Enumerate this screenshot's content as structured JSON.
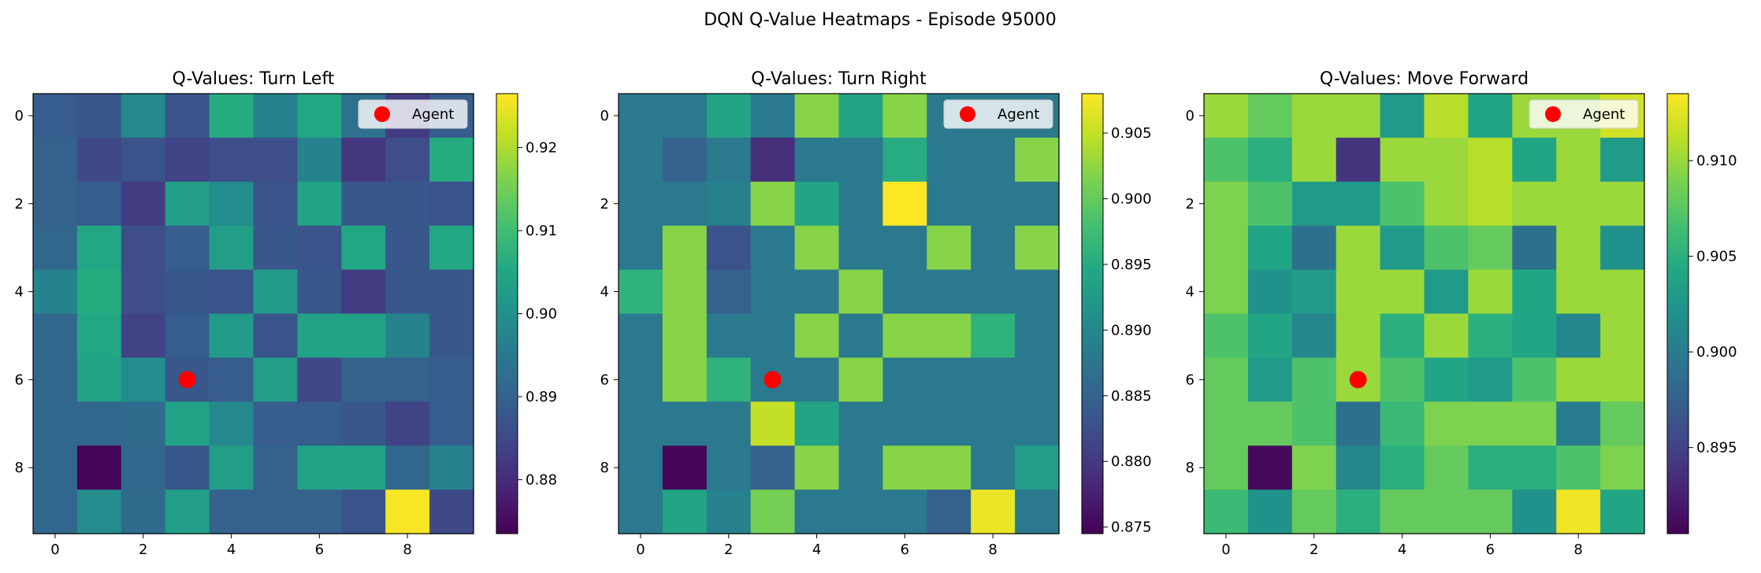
{
  "figure": {
    "suptitle": "DQN Q-Value Heatmaps - Episode 95000"
  },
  "chart_data": [
    {
      "type": "heatmap",
      "title": "Q-Values: Turn Left",
      "colormap": "viridis",
      "x_ticks": [
        0,
        2,
        4,
        6,
        8
      ],
      "y_ticks": [
        0,
        2,
        4,
        6,
        8
      ],
      "vmin": 0.8735,
      "vmax": 0.9265,
      "colorbar_ticks": [
        0.88,
        0.89,
        0.9,
        0.91,
        0.92
      ],
      "colorbar_tick_labels": [
        "0.88",
        "0.89",
        "0.90",
        "0.91",
        "0.92"
      ],
      "grid": [
        [
          0.889,
          0.888,
          0.898,
          0.887,
          0.906,
          0.897,
          0.905,
          0.893,
          0.883,
          0.889
        ],
        [
          0.89,
          0.885,
          0.887,
          0.884,
          0.886,
          0.886,
          0.897,
          0.882,
          0.886,
          0.906
        ],
        [
          0.89,
          0.889,
          0.883,
          0.903,
          0.899,
          0.887,
          0.904,
          0.888,
          0.888,
          0.887
        ],
        [
          0.891,
          0.905,
          0.886,
          0.889,
          0.903,
          0.888,
          0.887,
          0.905,
          0.888,
          0.905
        ],
        [
          0.897,
          0.906,
          0.886,
          0.888,
          0.887,
          0.902,
          0.888,
          0.883,
          0.888,
          0.888
        ],
        [
          0.891,
          0.905,
          0.884,
          0.889,
          0.902,
          0.887,
          0.904,
          0.904,
          0.897,
          0.888
        ],
        [
          0.891,
          0.904,
          0.899,
          0.888,
          0.889,
          0.903,
          0.885,
          0.89,
          0.89,
          0.889
        ],
        [
          0.891,
          0.891,
          0.892,
          0.904,
          0.898,
          0.889,
          0.889,
          0.888,
          0.884,
          0.889
        ],
        [
          0.891,
          0.874,
          0.891,
          0.888,
          0.903,
          0.89,
          0.904,
          0.904,
          0.891,
          0.897
        ],
        [
          0.891,
          0.899,
          0.892,
          0.903,
          0.89,
          0.89,
          0.89,
          0.887,
          0.926,
          0.885
        ]
      ],
      "agent": {
        "x": 3,
        "y": 6,
        "label": "Agent",
        "color": "#ff0000"
      },
      "legend": "top-right"
    },
    {
      "type": "heatmap",
      "title": "Q-Values: Turn Right",
      "colormap": "viridis",
      "x_ticks": [
        0,
        2,
        4,
        6,
        8
      ],
      "y_ticks": [
        0,
        2,
        4,
        6,
        8
      ],
      "vmin": 0.8745,
      "vmax": 0.908,
      "colorbar_ticks": [
        0.875,
        0.88,
        0.885,
        0.89,
        0.895,
        0.9,
        0.905
      ],
      "colorbar_tick_labels": [
        "0.875",
        "0.880",
        "0.885",
        "0.890",
        "0.895",
        "0.900",
        "0.905"
      ],
      "grid": [
        [
          0.888,
          0.888,
          0.894,
          0.888,
          0.902,
          0.894,
          0.902,
          0.888,
          0.888,
          0.888
        ],
        [
          0.888,
          0.885,
          0.888,
          0.879,
          0.888,
          0.888,
          0.895,
          0.888,
          0.888,
          0.902
        ],
        [
          0.888,
          0.888,
          0.889,
          0.902,
          0.894,
          0.888,
          0.908,
          0.888,
          0.888,
          0.888
        ],
        [
          0.888,
          0.902,
          0.883,
          0.888,
          0.902,
          0.888,
          0.888,
          0.902,
          0.888,
          0.902
        ],
        [
          0.896,
          0.902,
          0.885,
          0.888,
          0.888,
          0.902,
          0.888,
          0.888,
          0.888,
          0.888
        ],
        [
          0.888,
          0.902,
          0.888,
          0.888,
          0.902,
          0.888,
          0.902,
          0.902,
          0.896,
          0.888
        ],
        [
          0.888,
          0.902,
          0.896,
          0.888,
          0.888,
          0.902,
          0.888,
          0.888,
          0.888,
          0.888
        ],
        [
          0.888,
          0.888,
          0.888,
          0.905,
          0.894,
          0.888,
          0.888,
          0.888,
          0.888,
          0.888
        ],
        [
          0.888,
          0.875,
          0.888,
          0.885,
          0.902,
          0.888,
          0.902,
          0.902,
          0.888,
          0.893
        ],
        [
          0.888,
          0.894,
          0.889,
          0.901,
          0.888,
          0.888,
          0.888,
          0.885,
          0.907,
          0.888
        ]
      ],
      "agent": {
        "x": 3,
        "y": 6,
        "label": "Agent",
        "color": "#ff0000"
      },
      "legend": "top-right"
    },
    {
      "type": "heatmap",
      "title": "Q-Values: Move Forward",
      "colormap": "viridis",
      "x_ticks": [
        0,
        2,
        4,
        6,
        8
      ],
      "y_ticks": [
        0,
        2,
        4,
        6,
        8
      ],
      "vmin": 0.8905,
      "vmax": 0.9135,
      "colorbar_ticks": [
        0.895,
        0.9,
        0.905,
        0.91
      ],
      "colorbar_tick_labels": [
        "0.895",
        "0.900",
        "0.905",
        "0.910"
      ],
      "grid": [
        [
          0.91,
          0.908,
          0.91,
          0.91,
          0.903,
          0.911,
          0.904,
          0.91,
          0.91,
          0.912
        ],
        [
          0.907,
          0.905,
          0.91,
          0.894,
          0.91,
          0.91,
          0.911,
          0.904,
          0.91,
          0.903
        ],
        [
          0.909,
          0.907,
          0.903,
          0.903,
          0.907,
          0.91,
          0.911,
          0.91,
          0.91,
          0.91
        ],
        [
          0.909,
          0.904,
          0.899,
          0.91,
          0.903,
          0.907,
          0.908,
          0.899,
          0.91,
          0.902
        ],
        [
          0.909,
          0.902,
          0.903,
          0.91,
          0.91,
          0.903,
          0.91,
          0.904,
          0.91,
          0.91
        ],
        [
          0.907,
          0.904,
          0.901,
          0.91,
          0.905,
          0.91,
          0.905,
          0.904,
          0.901,
          0.91
        ],
        [
          0.908,
          0.903,
          0.907,
          0.91,
          0.907,
          0.904,
          0.903,
          0.907,
          0.91,
          0.91
        ],
        [
          0.908,
          0.908,
          0.907,
          0.899,
          0.906,
          0.909,
          0.909,
          0.909,
          0.9,
          0.908
        ],
        [
          0.908,
          0.891,
          0.909,
          0.901,
          0.905,
          0.908,
          0.905,
          0.905,
          0.907,
          0.909
        ],
        [
          0.906,
          0.902,
          0.908,
          0.905,
          0.908,
          0.908,
          0.908,
          0.902,
          0.913,
          0.904
        ]
      ],
      "agent": {
        "x": 3,
        "y": 6,
        "label": "Agent",
        "color": "#ff0000"
      },
      "legend": "top-right"
    }
  ]
}
